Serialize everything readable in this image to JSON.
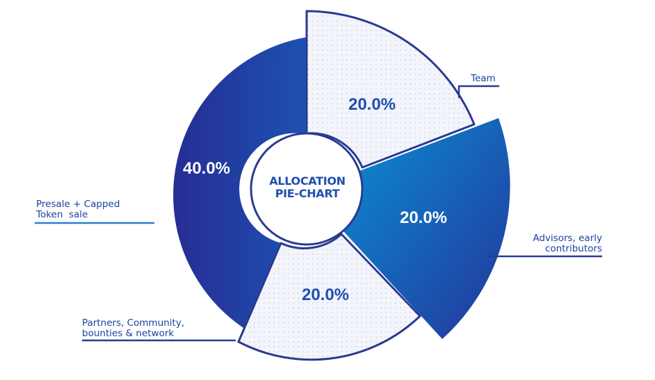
{
  "chart_data": {
    "type": "pie",
    "title": "ALLOCATION PIE-CHART",
    "title_lines": [
      "ALLOCATION",
      "PIE-CHART"
    ],
    "slices": [
      {
        "name": "Team",
        "label": "Team",
        "value": 20.0,
        "value_label": "20.0%",
        "style": "dotted",
        "color": "#f1f3fa"
      },
      {
        "name": "Advisors, early contributors",
        "label_lines": [
          "Advisors, early",
          "contributors"
        ],
        "value": 20.0,
        "value_label": "20.0%",
        "style": "gradient",
        "color": "#1366c4"
      },
      {
        "name": "Partners, Community, bounties & network",
        "label_lines": [
          "Partners, Community,",
          "bounties & network"
        ],
        "value": 20.0,
        "value_label": "20.0%",
        "style": "dotted",
        "color": "#f1f3fa"
      },
      {
        "name": "Presale + Capped Token sale",
        "label_lines": [
          "Presale + Capped",
          "Token  sale"
        ],
        "value": 40.0,
        "value_label": "40.0%",
        "style": "gradient",
        "color": "#283a9e"
      }
    ],
    "colors": {
      "dark_blue": "#26339a",
      "mid_blue": "#1f4fb0",
      "light_blue": "#0a84cc",
      "outline": "#2a3a92",
      "dotted_fill": "#f1f3fa"
    }
  }
}
